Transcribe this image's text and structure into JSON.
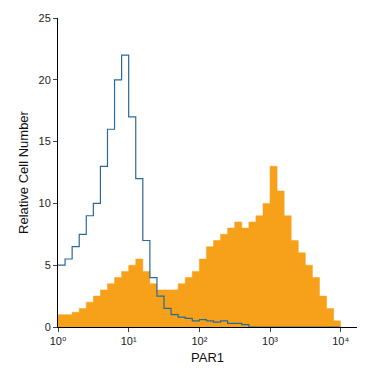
{
  "chart_data": {
    "type": "histogram",
    "x_label": "PAR1",
    "y_label": "Relative Cell Number",
    "log": "x",
    "grid": false,
    "bins": [
      1,
      1.259,
      1.585,
      1.995,
      2.512,
      3.162,
      3.981,
      5.012,
      6.31,
      7.943,
      10,
      12.59,
      15.85,
      19.95,
      25.12,
      31.62,
      39.81,
      50.12,
      63.1,
      79.43,
      100,
      125.9,
      158.5,
      199.5,
      251.2,
      316.2,
      398.1,
      501.2,
      631,
      794.3,
      1000,
      1259,
      1585,
      1995,
      2512,
      3162,
      3981,
      5012,
      6310,
      7943,
      10000
    ],
    "series": [
      {
        "type": "area",
        "color": "#f7a11a",
        "values": [
          1,
          1,
          1.2,
          1.5,
          2,
          2.5,
          3,
          3.5,
          4,
          4.5,
          5,
          5.5,
          4.5,
          3.5,
          3,
          3,
          3,
          3.5,
          4,
          4.5,
          5.5,
          6.5,
          7,
          7.5,
          8,
          8.5,
          8,
          8.5,
          9,
          10,
          13,
          11,
          9,
          7,
          6,
          5,
          4,
          2.5,
          1.5,
          0.5
        ]
      },
      {
        "type": "step",
        "color": "#2a6a9a",
        "values": [
          5,
          5.5,
          6.5,
          7.5,
          9,
          10,
          13,
          16,
          20,
          22,
          17,
          12,
          7,
          4,
          2.5,
          1.5,
          1,
          0.8,
          0.7,
          0.5,
          0.6,
          0.5,
          0.4,
          0.5,
          0.3,
          0.3,
          0.2,
          0,
          0,
          0,
          0,
          0,
          0,
          0,
          0,
          0,
          0,
          0,
          0,
          0
        ]
      }
    ],
    "xlim": [
      1,
      17000
    ],
    "xticks": [
      {
        "value": 1,
        "label": "10⁰"
      },
      {
        "value": 10,
        "label": "10¹"
      },
      {
        "value": 100,
        "label": "10²"
      },
      {
        "value": 1000,
        "label": "10³"
      },
      {
        "value": 10000,
        "label": "10⁴"
      }
    ],
    "ylim": [
      0,
      25
    ],
    "yticks": [
      0,
      5,
      10,
      15,
      20,
      25
    ]
  }
}
